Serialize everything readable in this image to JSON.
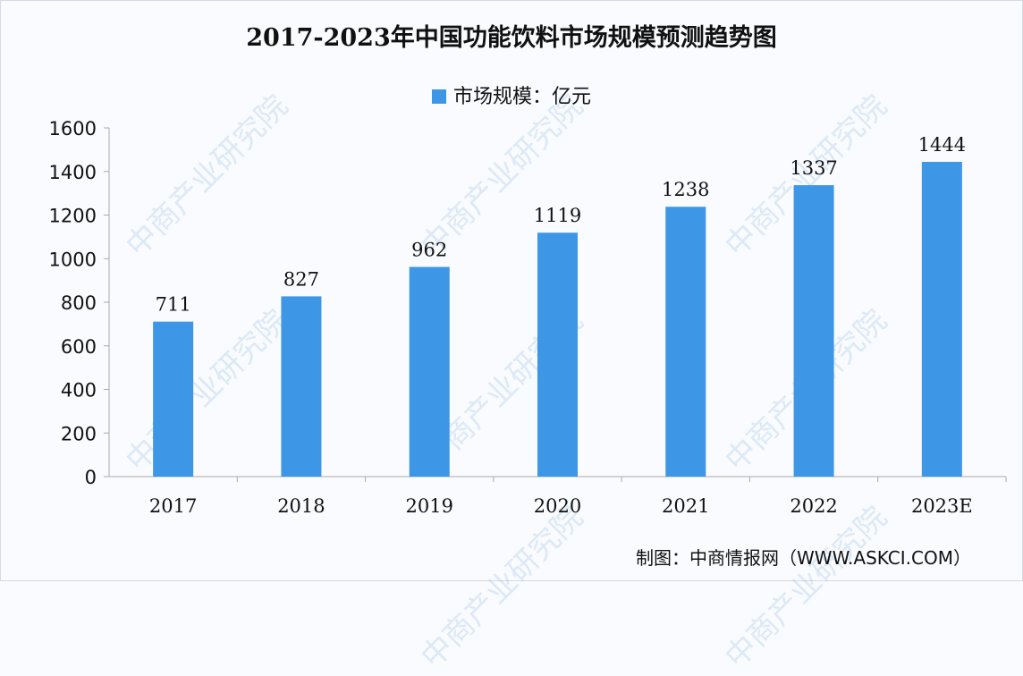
{
  "chart_data": {
    "type": "bar",
    "title": "2017-2023年中国功能饮料市场规模预测趋势图",
    "legend": [
      "市场规模：亿元"
    ],
    "legend_position": "top-center",
    "categories": [
      "2017",
      "2018",
      "2019",
      "2020",
      "2021",
      "2022",
      "2023E"
    ],
    "values": [
      711,
      827,
      962,
      1119,
      1238,
      1337,
      1444
    ],
    "ylim": [
      0,
      1600
    ],
    "yticks": [
      0,
      200,
      400,
      600,
      800,
      1000,
      1200,
      1400,
      1600
    ],
    "xlabel": "",
    "ylabel": "",
    "grid": false,
    "bar_color": "#3d96e6"
  },
  "source": "制图：中商情报网（WWW.ASKCI.COM）",
  "watermark": "中商产业研究院"
}
